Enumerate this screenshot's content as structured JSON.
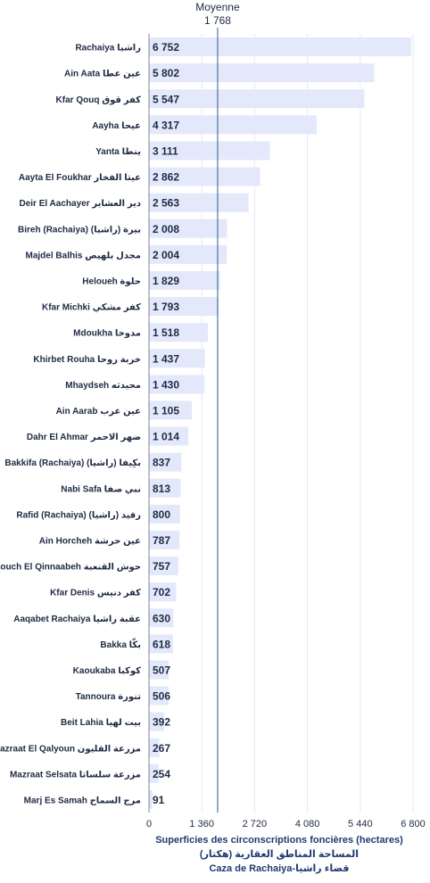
{
  "chart_data": {
    "type": "bar",
    "orientation": "horizontal",
    "categories": [
      "Rachaiya راشيا",
      "Ain Aata عين عطا",
      "Kfar Qouq كفر قوق",
      "Aayha عيحا",
      "Yanta ينطا",
      "Aayta El Foukhar عيتا الفخار",
      "Deir El Aachayer دير العشاير",
      "Bireh (Rachaiya) بيرة (راشيا)",
      "Majdel Balhis مجدل بلهيص",
      "Heloueh حلوة",
      "Kfar Michki كفر مشكي",
      "Mdoukha مدوخا",
      "Khirbet Rouha خربة روحا",
      "Mhaydseh محيدثه",
      "Ain Aarab عين عرب",
      "Dahr El Ahmar ضهر الاحمر",
      "Bakkifa (Rachaiya) بكِيفا (راشيا)",
      "Nabi Safa نبي صفا",
      "Rafid (Rachaiya) رفيد (راشيا)",
      "Ain Horcheh عين حرشة",
      "Haouch El Qinnaabeh حوش القنعبة",
      "Kfar Denis كفر دنيس",
      "Aaqabet Rachaiya عقبة راشيا",
      "Bakka بكّا",
      "Kaoukaba كوكبا",
      "Tannoura تنورة",
      "Beit Lahia بيت لهيا",
      "Mazraat El Qalyoun مزرعة القليون",
      "Mazraat Selsata مزرعة سلساتا",
      "Marj Es Samah مرج السماح"
    ],
    "values": [
      6752,
      5802,
      5547,
      4317,
      3111,
      2862,
      2563,
      2008,
      2004,
      1829,
      1793,
      1518,
      1437,
      1430,
      1105,
      1014,
      837,
      813,
      800,
      787,
      757,
      702,
      630,
      618,
      507,
      506,
      392,
      267,
      254,
      91
    ],
    "value_labels": [
      "6 752",
      "5 802",
      "5 547",
      "4 317",
      "3 111",
      "2 862",
      "2 563",
      "2 008",
      "2 004",
      "1 829",
      "1 793",
      "1 518",
      "1 437",
      "1 430",
      "1 105",
      "1 014",
      "837",
      "813",
      "800",
      "787",
      "757",
      "702",
      "630",
      "618",
      "507",
      "506",
      "392",
      "267",
      "254",
      "91"
    ],
    "xlim": [
      0,
      6800
    ],
    "xticks": [
      0,
      1360,
      2720,
      4080,
      5440,
      6800
    ],
    "xtick_labels": [
      "0",
      "1 360",
      "2 720",
      "4 080",
      "5 440",
      "6 800"
    ],
    "average": {
      "label": "Moyenne",
      "value": 1768,
      "value_label": "1 768"
    },
    "xlabel": [
      "Superficies des circonscriptions foncières (hectares)",
      "المساحة المناطق العقارية (هكتار)",
      "Caza de Rachaiya-قضاء راشيا"
    ],
    "grid": true,
    "colors": {
      "bar": "#e3e9fb",
      "text": "#1f2a44",
      "average_line": "#2f5d8a"
    }
  }
}
